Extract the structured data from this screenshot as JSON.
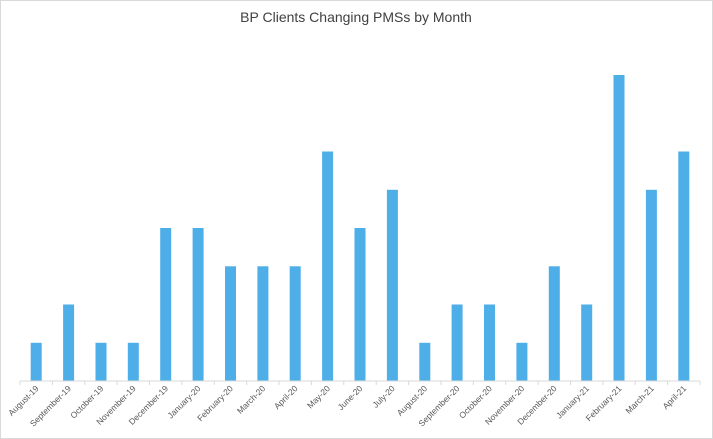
{
  "chart_data": {
    "type": "bar",
    "title": "BP Clients Changing PMSs by Month",
    "xlabel": "",
    "ylabel": "",
    "ylim": [
      0,
      8
    ],
    "grid": false,
    "legend": "none",
    "categories": [
      "August-19",
      "September-19",
      "October-19",
      "November-19",
      "December-19",
      "January-20",
      "February-20",
      "March-20",
      "April-20",
      "May-20",
      "June-20",
      "July-20",
      "August-20",
      "September-20",
      "October-20",
      "November-20",
      "December-20",
      "January-21",
      "February-21",
      "March-21",
      "April-21"
    ],
    "values": [
      1,
      2,
      1,
      1,
      4,
      4,
      3,
      3,
      3,
      6,
      4,
      5,
      1,
      2,
      2,
      1,
      3,
      2,
      8,
      5,
      6
    ],
    "colors": {
      "bar": "#4daee8",
      "axis": "#d9d9d9"
    }
  }
}
